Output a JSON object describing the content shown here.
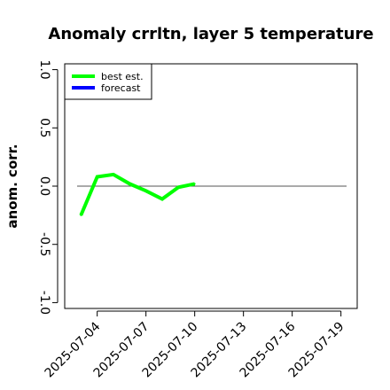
{
  "chart_data": {
    "type": "line",
    "title": "Anomaly crrltn, layer 5 temperature",
    "xlabel": "",
    "ylabel": "anom. corr.",
    "xlim": [
      "2025-07-02",
      "2025-07-20"
    ],
    "ylim": [
      -1.05,
      1.05
    ],
    "y_ticks": [
      -1.0,
      -0.5,
      0.0,
      0.5,
      1.0
    ],
    "y_tick_labels": [
      "-1.0",
      "-0.5",
      "0.0",
      "0.5",
      "1.0"
    ],
    "x_ticks": [
      "2025-07-04",
      "2025-07-07",
      "2025-07-10",
      "2025-07-13",
      "2025-07-16",
      "2025-07-19"
    ],
    "x_tick_labels": [
      "2025-07-04",
      "2025-07-07",
      "2025-07-10",
      "2025-07-13",
      "2025-07-16",
      "2025-07-19"
    ],
    "highlighted_x_tick": "2025-07-10",
    "highlight_color": "#228B22",
    "reference_line": 0.0,
    "grid": false,
    "legend_position": "top-left",
    "series": [
      {
        "name": "best est.",
        "color": "#00ff00",
        "x": [
          "2025-07-03",
          "2025-07-04",
          "2025-07-05",
          "2025-07-06",
          "2025-07-07",
          "2025-07-08",
          "2025-07-09",
          "2025-07-10"
        ],
        "values": [
          -0.25,
          0.08,
          0.1,
          0.02,
          -0.04,
          -0.11,
          -0.01,
          0.02
        ]
      },
      {
        "name": "forecast",
        "color": "#0000ff",
        "x": [],
        "values": []
      }
    ]
  }
}
